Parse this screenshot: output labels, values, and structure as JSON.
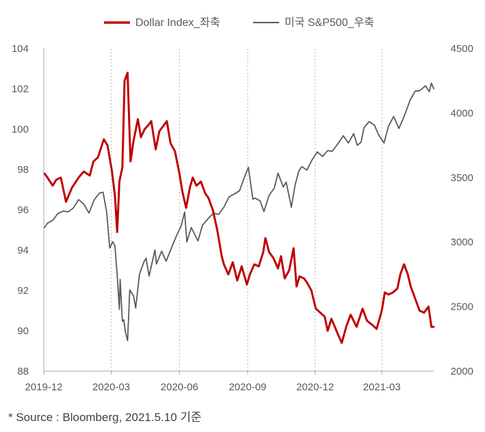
{
  "chart_data": {
    "type": "line",
    "title": "",
    "legend_position": "top-center",
    "grid": "vertical-dotted",
    "source": "* Source : Bloomberg, 2021.5.10 기준",
    "x": {
      "ticks": [
        "2019-12",
        "2020-03",
        "2020-06",
        "2020-09",
        "2020-12",
        "2021-03"
      ],
      "range": [
        "2019-12-01",
        "2021-05-10"
      ]
    },
    "y_left": {
      "label": "",
      "range": [
        88,
        104
      ],
      "ticks": [
        88,
        90,
        92,
        94,
        96,
        98,
        100,
        102,
        104
      ]
    },
    "y_right": {
      "label": "",
      "range": [
        2000,
        4500
      ],
      "ticks": [
        2000,
        2500,
        3000,
        3500,
        4000,
        4500
      ]
    },
    "series": [
      {
        "name": "Dollar Index_좌축",
        "axis": "left",
        "color": "#C00000",
        "points": [
          [
            "2019-12-02",
            97.8
          ],
          [
            "2019-12-06",
            97.6
          ],
          [
            "2019-12-13",
            97.2
          ],
          [
            "2019-12-18",
            97.5
          ],
          [
            "2019-12-24",
            97.6
          ],
          [
            "2019-12-31",
            96.4
          ],
          [
            "2020-01-08",
            97.1
          ],
          [
            "2020-01-17",
            97.6
          ],
          [
            "2020-01-24",
            97.9
          ],
          [
            "2020-02-01",
            97.7
          ],
          [
            "2020-02-06",
            98.4
          ],
          [
            "2020-02-12",
            98.6
          ],
          [
            "2020-02-20",
            99.5
          ],
          [
            "2020-02-25",
            99.2
          ],
          [
            "2020-03-02",
            97.9
          ],
          [
            "2020-03-06",
            96.7
          ],
          [
            "2020-03-09",
            94.9
          ],
          [
            "2020-03-12",
            97.4
          ],
          [
            "2020-03-16",
            98.1
          ],
          [
            "2020-03-19",
            102.4
          ],
          [
            "2020-03-23",
            102.8
          ],
          [
            "2020-03-27",
            98.4
          ],
          [
            "2020-03-31",
            99.4
          ],
          [
            "2020-04-06",
            100.5
          ],
          [
            "2020-04-10",
            99.6
          ],
          [
            "2020-04-15",
            100.0
          ],
          [
            "2020-04-20",
            100.2
          ],
          [
            "2020-04-24",
            100.4
          ],
          [
            "2020-04-30",
            99.0
          ],
          [
            "2020-05-05",
            99.9
          ],
          [
            "2020-05-11",
            100.2
          ],
          [
            "2020-05-15",
            100.4
          ],
          [
            "2020-05-20",
            99.3
          ],
          [
            "2020-05-26",
            98.9
          ],
          [
            "2020-06-01",
            97.8
          ],
          [
            "2020-06-05",
            96.9
          ],
          [
            "2020-06-10",
            96.1
          ],
          [
            "2020-06-15",
            97.1
          ],
          [
            "2020-06-19",
            97.6
          ],
          [
            "2020-06-24",
            97.2
          ],
          [
            "2020-06-30",
            97.4
          ],
          [
            "2020-07-06",
            96.8
          ],
          [
            "2020-07-10",
            96.6
          ],
          [
            "2020-07-16",
            96.0
          ],
          [
            "2020-07-22",
            95.0
          ],
          [
            "2020-07-28",
            93.7
          ],
          [
            "2020-07-31",
            93.3
          ],
          [
            "2020-08-06",
            92.8
          ],
          [
            "2020-08-12",
            93.4
          ],
          [
            "2020-08-18",
            92.5
          ],
          [
            "2020-08-24",
            93.2
          ],
          [
            "2020-08-31",
            92.3
          ],
          [
            "2020-09-04",
            92.8
          ],
          [
            "2020-09-10",
            93.3
          ],
          [
            "2020-09-16",
            93.2
          ],
          [
            "2020-09-22",
            93.9
          ],
          [
            "2020-09-25",
            94.6
          ],
          [
            "2020-09-30",
            93.9
          ],
          [
            "2020-10-06",
            93.6
          ],
          [
            "2020-10-12",
            93.1
          ],
          [
            "2020-10-16",
            93.7
          ],
          [
            "2020-10-21",
            92.6
          ],
          [
            "2020-10-27",
            93.0
          ],
          [
            "2020-11-02",
            94.1
          ],
          [
            "2020-11-06",
            92.2
          ],
          [
            "2020-11-10",
            92.7
          ],
          [
            "2020-11-16",
            92.6
          ],
          [
            "2020-11-20",
            92.4
          ],
          [
            "2020-11-26",
            92.0
          ],
          [
            "2020-12-02",
            91.1
          ],
          [
            "2020-12-08",
            90.9
          ],
          [
            "2020-12-14",
            90.7
          ],
          [
            "2020-12-18",
            90.0
          ],
          [
            "2020-12-23",
            90.6
          ],
          [
            "2020-12-31",
            89.9
          ],
          [
            "2021-01-06",
            89.4
          ],
          [
            "2021-01-12",
            90.2
          ],
          [
            "2021-01-18",
            90.8
          ],
          [
            "2021-01-26",
            90.2
          ],
          [
            "2021-02-03",
            91.1
          ],
          [
            "2021-02-09",
            90.5
          ],
          [
            "2021-02-16",
            90.3
          ],
          [
            "2021-02-22",
            90.1
          ],
          [
            "2021-03-01",
            91.0
          ],
          [
            "2021-03-05",
            91.9
          ],
          [
            "2021-03-10",
            91.8
          ],
          [
            "2021-03-16",
            91.9
          ],
          [
            "2021-03-22",
            92.1
          ],
          [
            "2021-03-26",
            92.8
          ],
          [
            "2021-03-31",
            93.3
          ],
          [
            "2021-04-05",
            92.8
          ],
          [
            "2021-04-09",
            92.2
          ],
          [
            "2021-04-15",
            91.6
          ],
          [
            "2021-04-21",
            91.0
          ],
          [
            "2021-04-27",
            90.9
          ],
          [
            "2021-05-03",
            91.2
          ],
          [
            "2021-05-07",
            90.2
          ],
          [
            "2021-05-10",
            90.2
          ]
        ]
      },
      {
        "name": "미국 S&P500_우축",
        "axis": "right",
        "color": "#595959",
        "points": [
          [
            "2019-12-02",
            3113
          ],
          [
            "2019-12-06",
            3146
          ],
          [
            "2019-12-13",
            3169
          ],
          [
            "2019-12-20",
            3221
          ],
          [
            "2019-12-27",
            3240
          ],
          [
            "2020-01-03",
            3235
          ],
          [
            "2020-01-10",
            3265
          ],
          [
            "2020-01-17",
            3330
          ],
          [
            "2020-01-24",
            3295
          ],
          [
            "2020-01-31",
            3225
          ],
          [
            "2020-02-07",
            3328
          ],
          [
            "2020-02-14",
            3380
          ],
          [
            "2020-02-19",
            3386
          ],
          [
            "2020-02-24",
            3226
          ],
          [
            "2020-02-28",
            2954
          ],
          [
            "2020-03-03",
            3003
          ],
          [
            "2020-03-06",
            2972
          ],
          [
            "2020-03-09",
            2746
          ],
          [
            "2020-03-12",
            2480
          ],
          [
            "2020-03-13",
            2711
          ],
          [
            "2020-03-16",
            2386
          ],
          [
            "2020-03-18",
            2398
          ],
          [
            "2020-03-20",
            2305
          ],
          [
            "2020-03-23",
            2237
          ],
          [
            "2020-03-26",
            2630
          ],
          [
            "2020-03-31",
            2585
          ],
          [
            "2020-04-03",
            2489
          ],
          [
            "2020-04-08",
            2750
          ],
          [
            "2020-04-14",
            2846
          ],
          [
            "2020-04-17",
            2875
          ],
          [
            "2020-04-21",
            2737
          ],
          [
            "2020-04-29",
            2939
          ],
          [
            "2020-05-01",
            2830
          ],
          [
            "2020-05-08",
            2930
          ],
          [
            "2020-05-14",
            2852
          ],
          [
            "2020-05-19",
            2922
          ],
          [
            "2020-05-27",
            3036
          ],
          [
            "2020-06-03",
            3122
          ],
          [
            "2020-06-08",
            3232
          ],
          [
            "2020-06-11",
            3002
          ],
          [
            "2020-06-17",
            3113
          ],
          [
            "2020-06-26",
            3009
          ],
          [
            "2020-07-02",
            3130
          ],
          [
            "2020-07-10",
            3185
          ],
          [
            "2020-07-17",
            3224
          ],
          [
            "2020-07-24",
            3215
          ],
          [
            "2020-07-31",
            3271
          ],
          [
            "2020-08-07",
            3351
          ],
          [
            "2020-08-14",
            3373
          ],
          [
            "2020-08-21",
            3397
          ],
          [
            "2020-08-28",
            3508
          ],
          [
            "2020-09-02",
            3580
          ],
          [
            "2020-09-08",
            3332
          ],
          [
            "2020-09-11",
            3341
          ],
          [
            "2020-09-18",
            3319
          ],
          [
            "2020-09-23",
            3237
          ],
          [
            "2020-09-30",
            3363
          ],
          [
            "2020-10-07",
            3419
          ],
          [
            "2020-10-12",
            3535
          ],
          [
            "2020-10-19",
            3427
          ],
          [
            "2020-10-23",
            3465
          ],
          [
            "2020-10-30",
            3270
          ],
          [
            "2020-11-04",
            3443
          ],
          [
            "2020-11-09",
            3551
          ],
          [
            "2020-11-13",
            3585
          ],
          [
            "2020-11-20",
            3558
          ],
          [
            "2020-11-27",
            3638
          ],
          [
            "2020-12-04",
            3699
          ],
          [
            "2020-12-11",
            3663
          ],
          [
            "2020-12-18",
            3709
          ],
          [
            "2020-12-24",
            3703
          ],
          [
            "2020-12-31",
            3756
          ],
          [
            "2021-01-08",
            3824
          ],
          [
            "2021-01-15",
            3768
          ],
          [
            "2021-01-22",
            3841
          ],
          [
            "2021-01-27",
            3750
          ],
          [
            "2021-02-01",
            3774
          ],
          [
            "2021-02-05",
            3887
          ],
          [
            "2021-02-12",
            3934
          ],
          [
            "2021-02-19",
            3906
          ],
          [
            "2021-02-25",
            3829
          ],
          [
            "2021-03-04",
            3768
          ],
          [
            "2021-03-10",
            3898
          ],
          [
            "2021-03-17",
            3974
          ],
          [
            "2021-03-24",
            3881
          ],
          [
            "2021-03-31",
            3973
          ],
          [
            "2021-04-08",
            4097
          ],
          [
            "2021-04-15",
            4170
          ],
          [
            "2021-04-21",
            4173
          ],
          [
            "2021-04-29",
            4211
          ],
          [
            "2021-05-04",
            4165
          ],
          [
            "2021-05-07",
            4232
          ],
          [
            "2021-05-10",
            4188
          ]
        ]
      }
    ]
  }
}
